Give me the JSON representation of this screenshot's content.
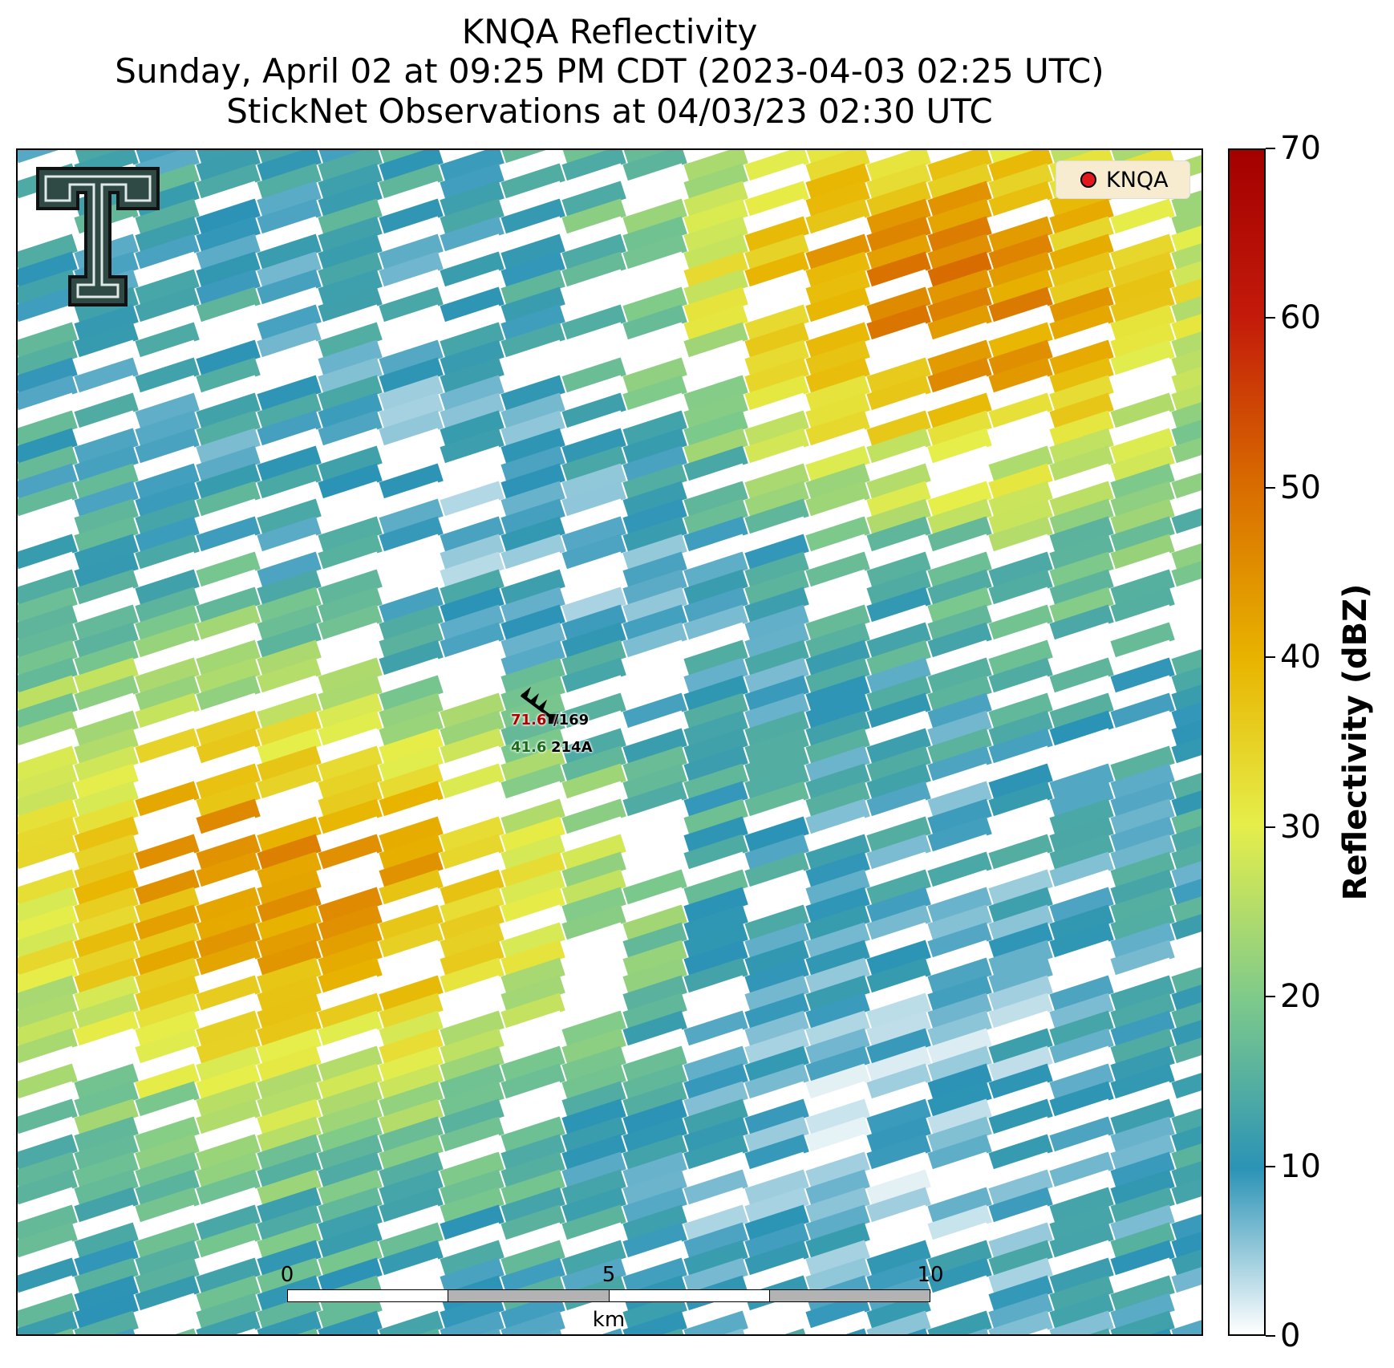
{
  "title": {
    "line1": "KNQA Reflectivity",
    "line2": "Sunday, April 02 at 09:25 PM CDT (2023-04-03 02:25 UTC)",
    "line3": "StickNet Observations at 04/03/23 02:30 UTC"
  },
  "legend": {
    "label": "KNQA",
    "marker_color": "#e31a1c"
  },
  "colorbar": {
    "label": "Reflectivity (dBZ)",
    "ticks": [
      "0",
      "10",
      "20",
      "30",
      "40",
      "50",
      "60",
      "70"
    ],
    "colors": [
      "#ffffff",
      "#2b93b6",
      "#7cc98c",
      "#e6ee4a",
      "#e8b400",
      "#d86a00",
      "#c31a0a",
      "#a30000"
    ]
  },
  "scalebar": {
    "labels": [
      "0",
      "5",
      "10"
    ],
    "unit": "km"
  },
  "observations": {
    "temp": "71.6",
    "wind_dir": "169",
    "dewpoint": "41.6",
    "station": "214A"
  },
  "logo": {
    "icon": "texas-tech-double-t-logo"
  }
}
